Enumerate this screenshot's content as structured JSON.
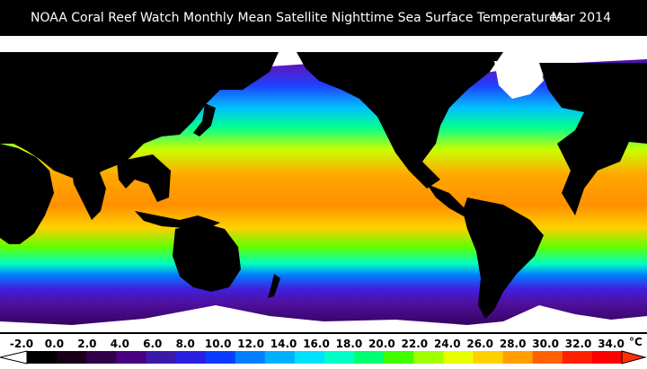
{
  "title": "NOAA Coral Reef Watch Monthly Mean Satellite Nighttime Sea Surface Temperatures",
  "date": "Mar 2014",
  "colorbar": {
    "unit": "°C",
    "labels": [
      "-2.0",
      "0.0",
      "2.0",
      "4.0",
      "6.0",
      "8.0",
      "10.0",
      "12.0",
      "14.0",
      "16.0",
      "18.0",
      "20.0",
      "22.0",
      "24.0",
      "26.0",
      "28.0",
      "30.0",
      "32.0",
      "34.0"
    ],
    "colors": [
      "#000000",
      "#180018",
      "#300048",
      "#4a0080",
      "#3a1aa8",
      "#2a1ee0",
      "#0a3cff",
      "#0080ff",
      "#00b0ff",
      "#00e0ff",
      "#00ffc8",
      "#00ff70",
      "#40ff00",
      "#a0ff00",
      "#e8ff00",
      "#ffd000",
      "#ffa000",
      "#ff6000",
      "#ff2000",
      "#ff0000"
    ],
    "min_color": "#ffffff",
    "max_color": "#ff3000"
  },
  "colors": {
    "land": "#000000",
    "ice": "#ffffff",
    "background": "#000000"
  }
}
